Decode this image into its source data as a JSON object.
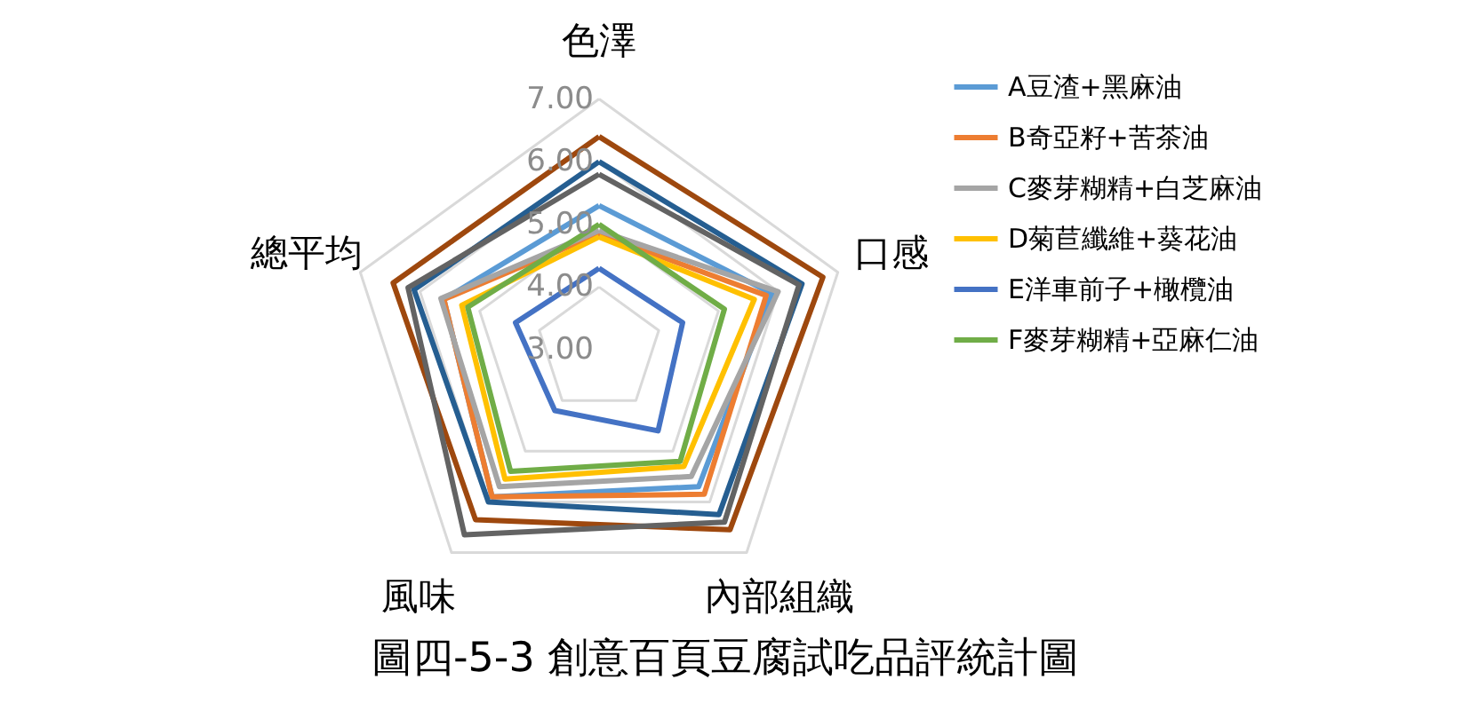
{
  "chart_data": {
    "type": "radar",
    "title": "圖四-5-3 創意百頁豆腐試吃品評統計圖",
    "categories": [
      "色澤",
      "口感",
      "內部組織",
      "風味",
      "總平均"
    ],
    "ylim": [
      3,
      7
    ],
    "yticks": [
      {
        "value": 3,
        "label": "3.00"
      },
      {
        "value": 4,
        "label": "4.00"
      },
      {
        "value": 5,
        "label": "5.00"
      },
      {
        "value": 6,
        "label": "6.00"
      },
      {
        "value": 7,
        "label": "7.00"
      }
    ],
    "grid": true,
    "legend": "right",
    "series": [
      {
        "name": "A豆渣+黑麻油",
        "color": "#5b9bd5",
        "values": [
          5.3,
          5.9,
          5.7,
          5.9,
          5.6
        ]
      },
      {
        "name": "B奇亞籽+苦茶油",
        "color": "#ed7d31",
        "values": [
          4.85,
          5.8,
          5.85,
          5.9,
          5.6
        ]
      },
      {
        "name": "C麥芽糊精+白芝麻油",
        "color": "#a5a5a5",
        "values": [
          4.9,
          6.0,
          5.5,
          5.7,
          5.65
        ]
      },
      {
        "name": "D菊苣纖維+葵花油",
        "color": "#ffc000",
        "values": [
          4.8,
          5.6,
          5.3,
          5.55,
          5.3
        ]
      },
      {
        "name": "E洋車前子+橄欖油",
        "color": "#4472c4",
        "values": [
          4.3,
          4.4,
          4.6,
          4.2,
          4.4
        ]
      },
      {
        "name": "F麥芽糊精+亞麻仁油",
        "color": "#70ad47",
        "values": [
          5.0,
          5.1,
          5.2,
          5.4,
          5.2
        ]
      },
      {
        "color": "#255e91",
        "values": [
          6.0,
          6.4,
          6.25,
          6.0,
          6.1
        ]
      },
      {
        "color": "#9e480e",
        "values": [
          6.4,
          6.75,
          6.55,
          6.35,
          6.45
        ]
      },
      {
        "color": "#636363",
        "values": [
          5.8,
          6.35,
          6.4,
          6.65,
          6.2
        ]
      }
    ]
  }
}
